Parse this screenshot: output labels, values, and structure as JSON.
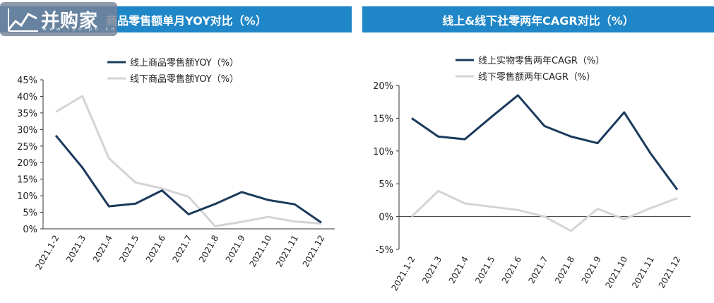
{
  "logo": {
    "text": "并购家",
    "sub": "w w w . i p o i p o . c n"
  },
  "chart_data": [
    {
      "type": "line",
      "title": "商品零售额单月YOY对比（%）",
      "categories": [
        "2021.1-2",
        "2021.3",
        "2021.4",
        "2021.5",
        "2021.6",
        "2021.7",
        "2021.8",
        "2021.9",
        "2021.10",
        "2021.11",
        "2021.12"
      ],
      "y_ticks": [
        "45%",
        "40%",
        "35%",
        "30%",
        "25%",
        "20%",
        "15%",
        "10%",
        "5%",
        "0%"
      ],
      "ylim": [
        0,
        45
      ],
      "legend_position": "top",
      "series": [
        {
          "name": "线上商品零售额YOY（%）",
          "color": "#1b3a5c",
          "values": [
            28.2,
            18.5,
            6.8,
            7.6,
            11.6,
            4.4,
            7.5,
            11.1,
            8.7,
            7.4,
            1.9
          ]
        },
        {
          "name": "线下商品零售额YOY（%）",
          "color": "#d4d4d4",
          "values": [
            35.3,
            40.1,
            21.3,
            14.0,
            12.2,
            9.7,
            0.8,
            2.1,
            3.6,
            2.2,
            1.6
          ]
        }
      ]
    },
    {
      "type": "line",
      "title": "线上&线下社零两年CAGR对比（%）",
      "categories": [
        "2021.1-2",
        "2021.3",
        "2021.4",
        "2021.5",
        "2021.6",
        "2021.7",
        "2021.8",
        "2021.9",
        "2021.10",
        "2021.11",
        "2021.12"
      ],
      "y_ticks": [
        "20%",
        "15%",
        "10%",
        "5%",
        "0%",
        "-5%"
      ],
      "ylim": [
        -5,
        20
      ],
      "legend_position": "top",
      "series": [
        {
          "name": "线上实物零售两年CAGR（%）",
          "color": "#1b3a5c",
          "values": [
            15.0,
            12.2,
            11.8,
            15.2,
            18.5,
            13.8,
            12.2,
            11.2,
            15.9,
            9.6,
            4.1
          ]
        },
        {
          "name": "线下零售额两年CAGR（%）",
          "color": "#d4d4d4",
          "values": [
            0.0,
            3.9,
            2.0,
            1.5,
            1.0,
            0.0,
            -2.2,
            1.2,
            -0.4,
            1.3,
            2.8
          ]
        }
      ]
    }
  ]
}
